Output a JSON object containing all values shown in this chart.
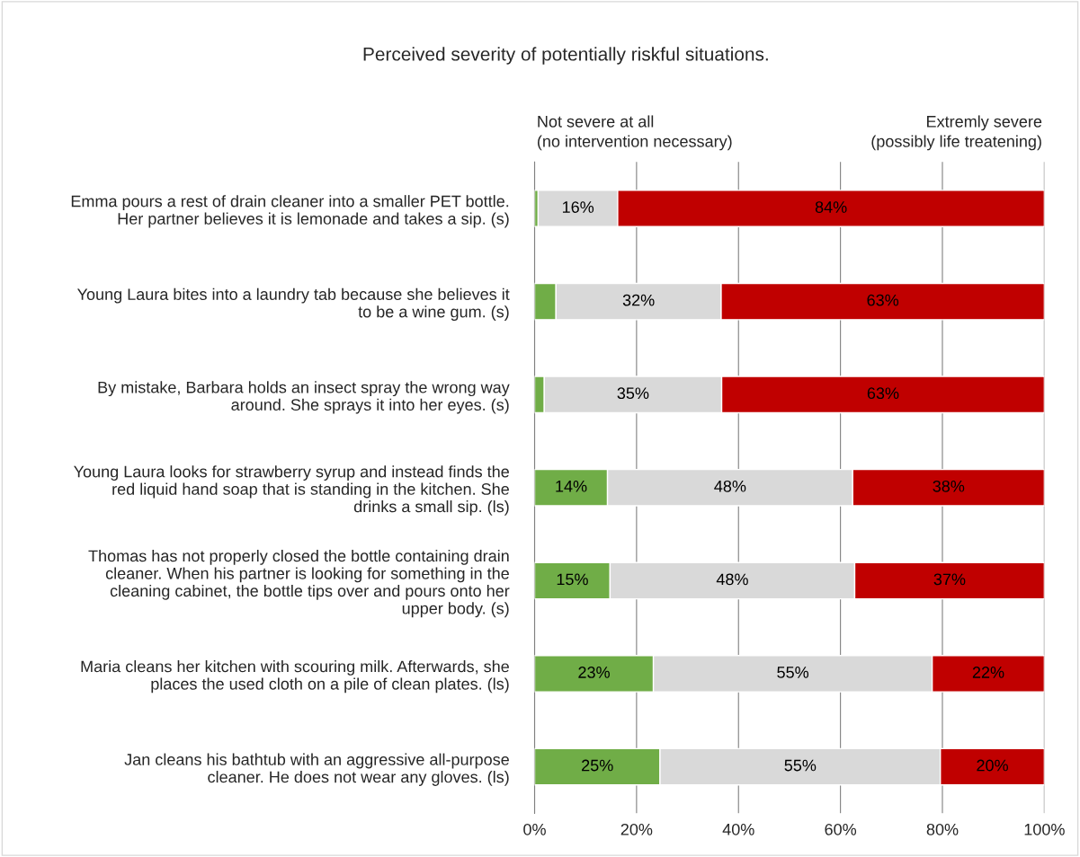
{
  "chart_data": {
    "type": "bar",
    "orientation": "horizontal",
    "stacked": true,
    "title": "Perceived severity of potentially riskful situations.",
    "annotations": [
      "Not severe at all\n(no intervention necessary)",
      "Extremly severe\n(possibly life treatening)"
    ],
    "categories": [
      "Emma pours a rest of drain cleaner into a smaller PET bottle.\nHer partner believes it is lemonade and takes a sip. (s)",
      "Young Laura bites into a laundry tab because she believes it\nto be a wine gum. (s)",
      "By mistake, Barbara holds an insect spray the wrong way\naround. She sprays it into her eyes. (s)",
      "Young Laura looks for strawberry syrup and instead finds the\nred liquid hand soap that is standing in the kitchen. She\ndrinks a small sip. (ls)",
      "Thomas has not properly closed the bottle containing drain\ncleaner. When his partner is looking for something in the\ncleaning cabinet, the bottle tips over and pours onto her\nupper body. (s)",
      "Maria cleans her kitchen with scouring milk. Afterwards, she\nplaces the used cloth on a pile of clean plates. (ls)",
      "Jan cleans his bathtub with an aggressive all-purpose\ncleaner. He does not wear any gloves. (ls)"
    ],
    "series": [
      {
        "color": "#70ad47",
        "values": [
          0.7,
          4.2,
          1.9,
          14.3,
          14.8,
          23.3,
          24.6
        ],
        "value_labels": [
          null,
          null,
          null,
          "14%",
          "15%",
          "23%",
          "25%"
        ]
      },
      {
        "color": "#d9d9d9",
        "values": [
          15.6,
          32.4,
          34.8,
          48.1,
          48.0,
          54.7,
          55.0
        ],
        "value_labels": [
          "16%",
          "32%",
          "35%",
          "48%",
          "48%",
          "55%",
          "55%"
        ]
      },
      {
        "color": "#c00000",
        "values": [
          83.7,
          63.4,
          63.3,
          37.6,
          37.2,
          22.0,
          20.4
        ],
        "value_labels": [
          "84%",
          "63%",
          "63%",
          "38%",
          "37%",
          "22%",
          "20%"
        ]
      }
    ],
    "xlim": [
      0,
      100
    ],
    "xticks": [
      {
        "value": 0,
        "label": "0%"
      },
      {
        "value": 20,
        "label": "20%"
      },
      {
        "value": 40,
        "label": "40%"
      },
      {
        "value": 60,
        "label": "60%"
      },
      {
        "value": 80,
        "label": "80%"
      },
      {
        "value": 100,
        "label": "100%"
      }
    ],
    "grid": "x"
  }
}
